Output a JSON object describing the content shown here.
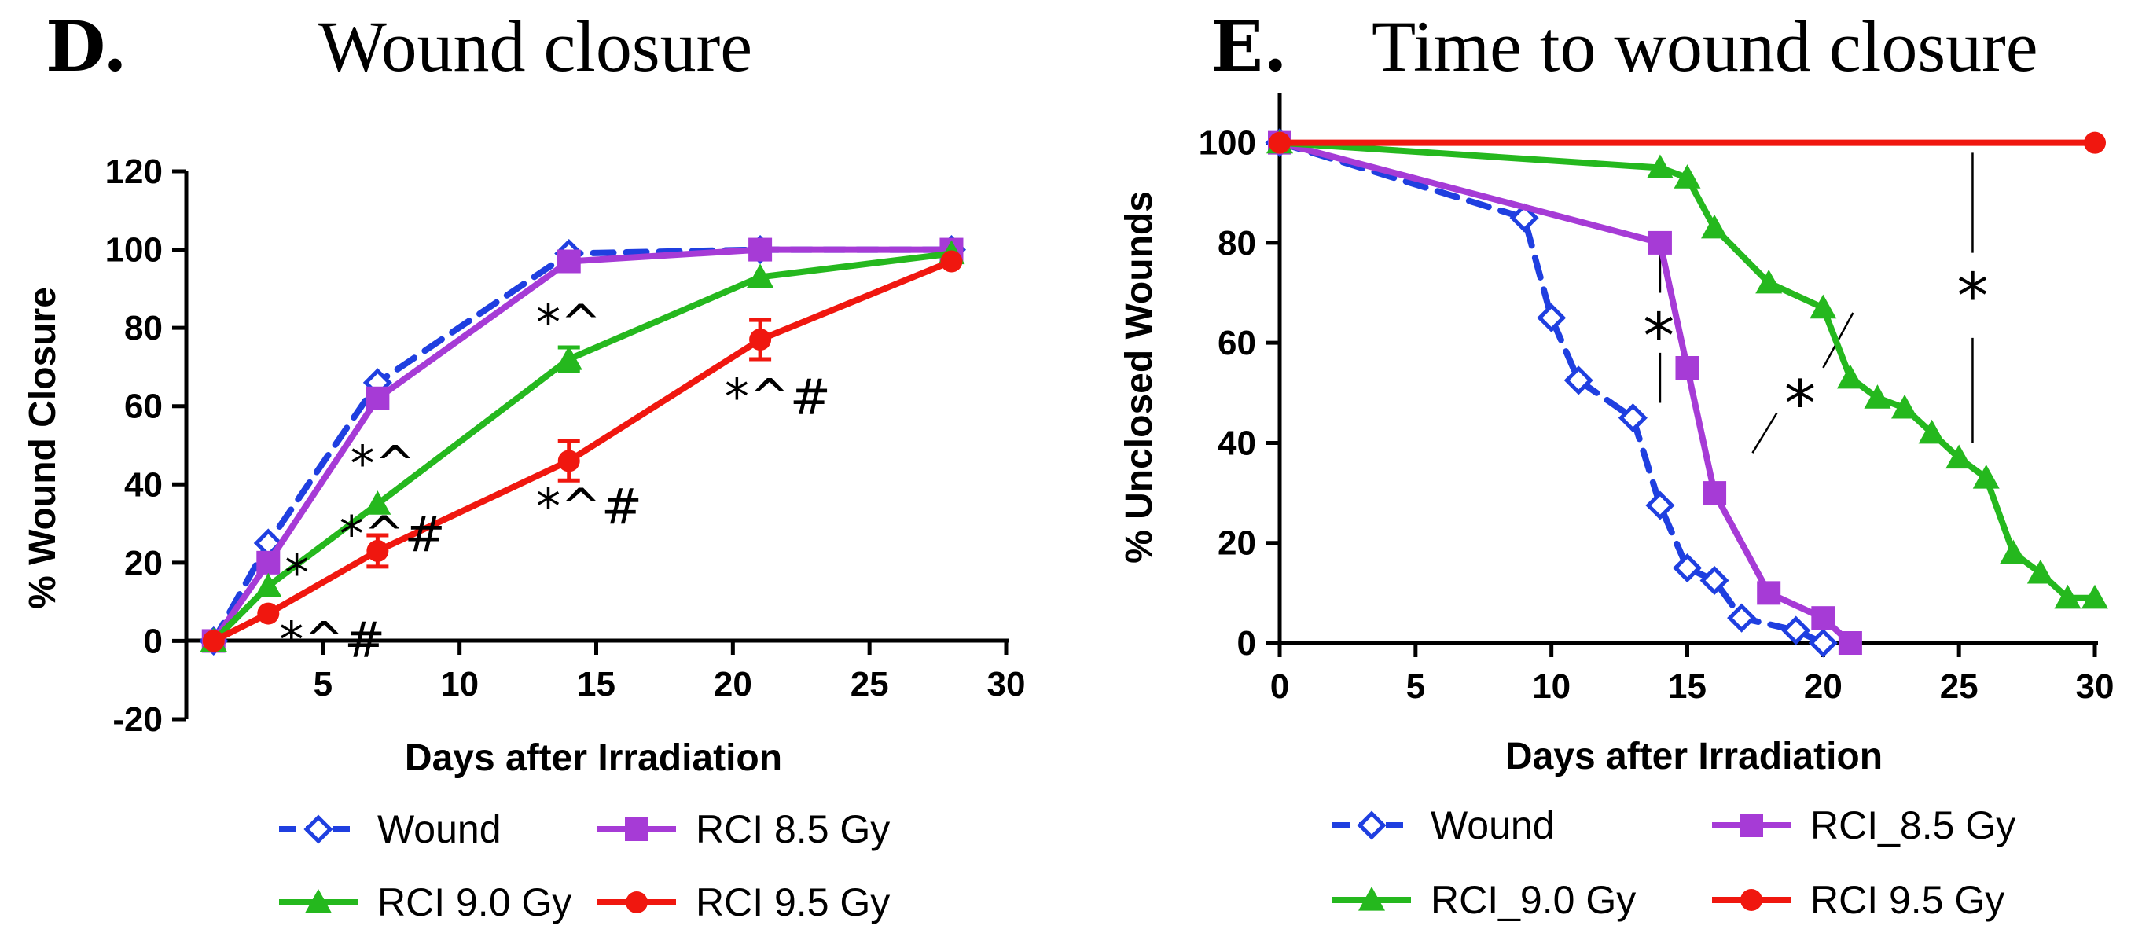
{
  "chart_data": [
    {
      "panel": "D.",
      "type": "line",
      "title": "Wound closure",
      "xlabel": "Days after Irradiation",
      "ylabel": "% Wound Closure",
      "xlim": [
        0,
        30
      ],
      "ylim": [
        -20,
        120
      ],
      "xticks": [
        5,
        10,
        15,
        20,
        25,
        30
      ],
      "xtick_labels": [
        "5",
        "10",
        "15",
        "20",
        "25",
        "30"
      ],
      "yticks": [
        -20,
        0,
        20,
        40,
        60,
        80,
        100,
        120
      ],
      "ytick_labels": [
        "-20",
        "0",
        "20",
        "40",
        "60",
        "80",
        "100",
        "120"
      ],
      "legend_layout": "below, two columns",
      "series": [
        {
          "name": "Wound",
          "color": "#1f3fe0",
          "marker": "open-diamond",
          "line": "dashed",
          "x": [
            1,
            3,
            7,
            14,
            21,
            28
          ],
          "y": [
            0,
            25,
            66,
            99,
            100,
            100
          ],
          "err": [
            0,
            0,
            0,
            0,
            0,
            0
          ]
        },
        {
          "name": "RCI 8.5 Gy",
          "color": "#a63bd6",
          "marker": "square",
          "line": "solid",
          "x": [
            1,
            3,
            7,
            14,
            21,
            28
          ],
          "y": [
            0,
            20,
            62,
            97,
            100,
            100
          ],
          "err": [
            0,
            0,
            0,
            0,
            0,
            0
          ]
        },
        {
          "name": "RCI 9.0 Gy",
          "color": "#25b81e",
          "marker": "triangle",
          "line": "solid",
          "x": [
            1,
            3,
            7,
            14,
            21,
            28
          ],
          "y": [
            0,
            14,
            35,
            72,
            93,
            99
          ],
          "err": [
            0,
            0,
            0,
            3,
            0,
            0
          ]
        },
        {
          "name": "RCI 9.5 Gy",
          "color": "#f0170f",
          "marker": "circle",
          "line": "solid",
          "x": [
            1,
            3,
            7,
            14,
            21,
            28
          ],
          "y": [
            0,
            7,
            23,
            46,
            77,
            97
          ],
          "err": [
            0,
            0,
            4,
            5,
            5,
            0
          ]
        }
      ],
      "annotations": [
        {
          "text": "*",
          "x": 3.6,
          "y": 13
        },
        {
          "text": "*^#",
          "x": 3.4,
          "y": -4
        },
        {
          "text": "*^",
          "x": 6.0,
          "y": 41
        },
        {
          "text": "*^#",
          "x": 5.6,
          "y": 23
        },
        {
          "text": "*^",
          "x": 12.8,
          "y": 77
        },
        {
          "text": "*^#",
          "x": 12.8,
          "y": 30
        },
        {
          "text": "*^#",
          "x": 19.7,
          "y": 58
        }
      ]
    },
    {
      "panel": "E.",
      "type": "line",
      "title": "Time to wound closure",
      "xlabel": "Days after Irradiation",
      "ylabel": "% Unclosed Wounds",
      "xlim": [
        0,
        30
      ],
      "ylim": [
        0,
        110
      ],
      "xticks": [
        0,
        5,
        10,
        15,
        20,
        25,
        30
      ],
      "xtick_labels": [
        "0",
        "5",
        "10",
        "15",
        "20",
        "25",
        "30"
      ],
      "yticks": [
        0,
        20,
        40,
        60,
        80,
        100
      ],
      "ytick_labels": [
        "0",
        "20",
        "40",
        "60",
        "80",
        "100"
      ],
      "legend_layout": "below, two columns",
      "series": [
        {
          "name": "Wound",
          "color": "#1f3fe0",
          "marker": "open-diamond",
          "line": "dashed",
          "x": [
            0,
            9,
            10,
            11,
            13,
            14,
            15,
            16,
            17,
            19,
            20
          ],
          "y": [
            100,
            85,
            65,
            52.5,
            45,
            27.5,
            15,
            12.5,
            5,
            2.5,
            0
          ]
        },
        {
          "name": "RCI_8.5 Gy",
          "color": "#a63bd6",
          "marker": "square",
          "line": "solid",
          "x": [
            0,
            14,
            15,
            16,
            18,
            20,
            21
          ],
          "y": [
            100,
            80,
            55,
            30,
            10,
            5,
            0
          ]
        },
        {
          "name": "RCI_9.0 Gy",
          "color": "#25b81e",
          "marker": "triangle",
          "line": "solid",
          "x": [
            0,
            14,
            15,
            16,
            18,
            20,
            21,
            22,
            23,
            24,
            25,
            26,
            27,
            28,
            29,
            30
          ],
          "y": [
            100,
            95,
            93,
            83,
            72,
            67,
            53,
            49,
            47,
            42,
            37,
            33,
            18,
            14,
            9,
            9
          ]
        },
        {
          "name": "RCI 9.5 Gy",
          "color": "#f0170f",
          "marker": "circle",
          "line": "solid",
          "x": [
            0,
            30
          ],
          "y": [
            100,
            100
          ]
        }
      ],
      "annotations": [
        {
          "text": "*",
          "x": 13.95,
          "y": 57
        },
        {
          "text": "*",
          "x": 19.15,
          "y": 43.5
        },
        {
          "text": "*",
          "x": 25.5,
          "y": 65
        }
      ],
      "significance_lines": [
        {
          "x1": 14,
          "y1": 80,
          "x2": 14,
          "y2": 70
        },
        {
          "x1": 14,
          "y1": 58,
          "x2": 14,
          "y2": 48
        },
        {
          "x1": 17.4,
          "y1": 38,
          "x2": 18.3,
          "y2": 46
        },
        {
          "x1": 20.0,
          "y1": 55,
          "x2": 21.1,
          "y2": 66
        },
        {
          "x1": 25.5,
          "y1": 98,
          "x2": 25.5,
          "y2": 78
        },
        {
          "x1": 25.5,
          "y1": 61,
          "x2": 25.5,
          "y2": 40
        }
      ]
    }
  ]
}
